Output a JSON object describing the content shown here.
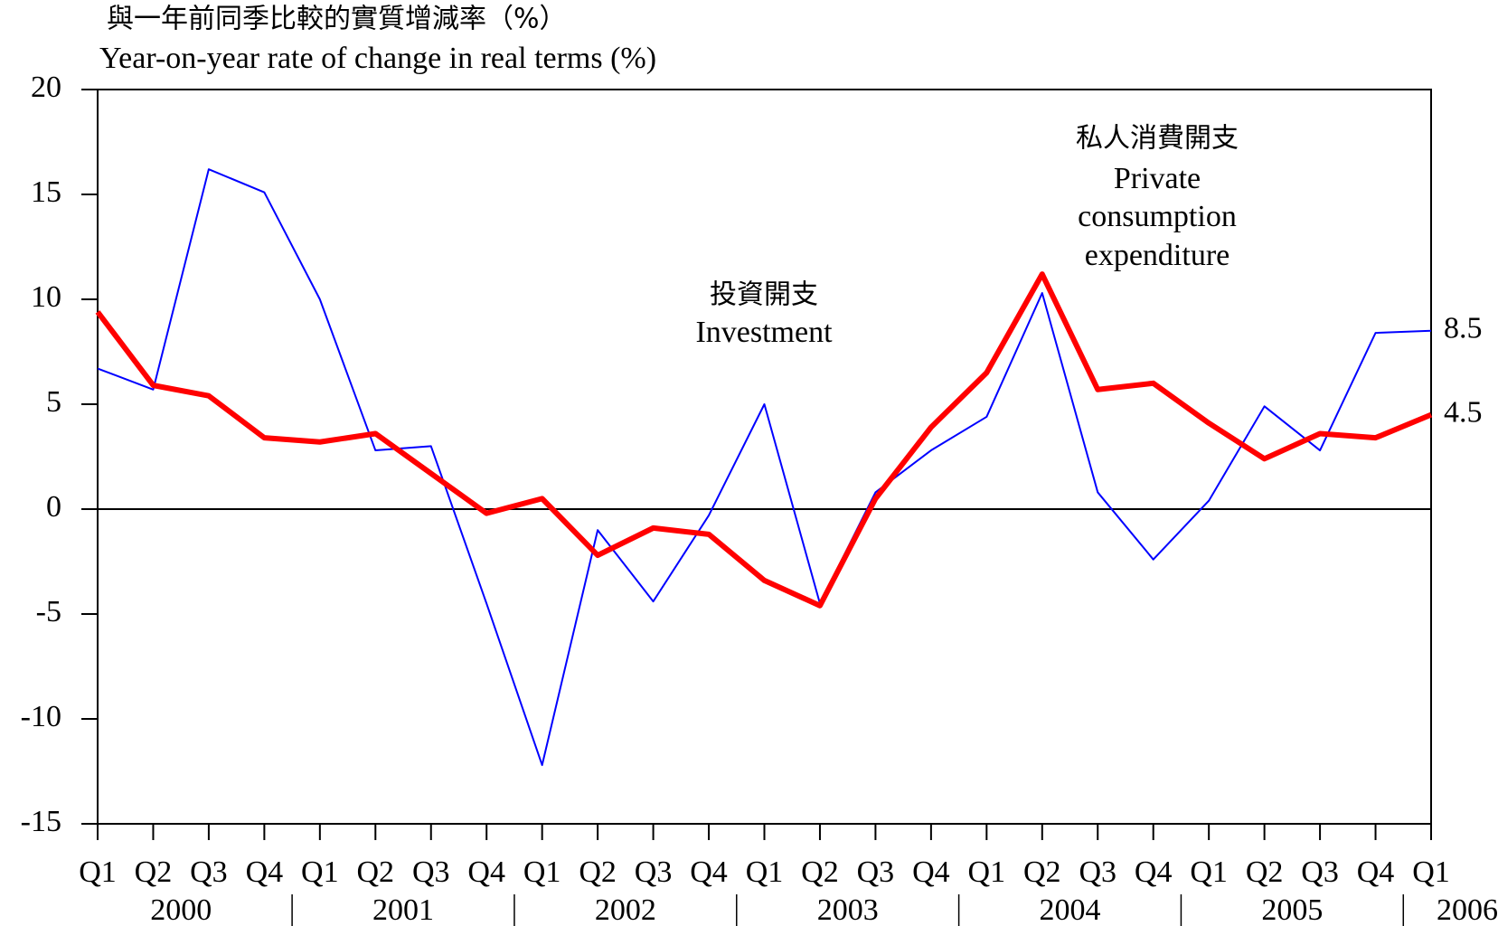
{
  "chart_data": {
    "type": "line",
    "y_label_lines": [
      "與一年前同季比較的實質增減率（%）",
      "Year-on-year rate of change in real terms (%)"
    ],
    "categories": [
      "Q1",
      "Q2",
      "Q3",
      "Q4",
      "Q1",
      "Q2",
      "Q3",
      "Q4",
      "Q1",
      "Q2",
      "Q3",
      "Q4",
      "Q1",
      "Q2",
      "Q3",
      "Q4",
      "Q1",
      "Q2",
      "Q3",
      "Q4",
      "Q1",
      "Q2",
      "Q3",
      "Q4",
      "Q1"
    ],
    "x_groups": [
      "2000",
      "2001",
      "2002",
      "2003",
      "2004",
      "2005",
      "2006"
    ],
    "series": [
      {
        "label_lines": [
          "投資開支",
          "Investment"
        ],
        "color": "#0000ff",
        "values": [
          6.7,
          5.7,
          16.2,
          15.1,
          10.0,
          2.8,
          3.0,
          -4.5,
          -12.2,
          -1.0,
          -4.4,
          -0.3,
          5.0,
          -4.5,
          0.8,
          2.8,
          4.4,
          10.3,
          0.8,
          -2.4,
          0.4,
          4.9,
          2.8,
          8.4,
          8.5
        ]
      },
      {
        "label_lines": [
          "私人消費開支",
          "Private",
          "consumption",
          "expenditure"
        ],
        "color": "#ff0000",
        "values": [
          9.4,
          5.9,
          5.4,
          3.4,
          3.2,
          3.6,
          1.7,
          -0.2,
          0.5,
          -2.2,
          -0.9,
          -1.2,
          -3.4,
          -4.6,
          0.5,
          3.9,
          6.5,
          11.2,
          5.7,
          6.0,
          4.1,
          2.4,
          3.6,
          3.4,
          4.5
        ]
      }
    ],
    "ylim": [
      -15,
      20
    ],
    "yticks": [
      -15,
      -10,
      -5,
      0,
      5,
      10,
      15,
      20
    ],
    "zero_line": true
  }
}
